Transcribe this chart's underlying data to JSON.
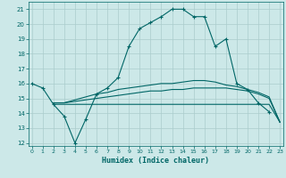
{
  "xlabel": "Humidex (Indice chaleur)",
  "background_color": "#cce8e8",
  "grid_color": "#aacccc",
  "line_color": "#006666",
  "curve1": {
    "x": [
      0,
      1,
      2,
      3,
      4,
      5,
      6,
      7,
      8,
      9,
      10,
      11,
      12,
      13,
      14,
      15,
      16,
      17,
      18,
      19,
      20,
      21,
      22
    ],
    "y": [
      16.0,
      15.7,
      14.6,
      13.8,
      12.0,
      13.6,
      15.3,
      15.7,
      16.4,
      18.5,
      19.7,
      20.1,
      20.5,
      21.0,
      21.0,
      20.5,
      20.5,
      18.5,
      19.0,
      16.0,
      15.6,
      14.7,
      14.1
    ]
  },
  "curve2": {
    "x": [
      2,
      3,
      4,
      5,
      6,
      7,
      8,
      9,
      10,
      11,
      12,
      13,
      14,
      15,
      16,
      17,
      18,
      19,
      20,
      21,
      22,
      23
    ],
    "y": [
      14.6,
      14.6,
      14.6,
      14.6,
      14.6,
      14.6,
      14.6,
      14.6,
      14.6,
      14.6,
      14.6,
      14.6,
      14.6,
      14.6,
      14.6,
      14.6,
      14.6,
      14.6,
      14.6,
      14.6,
      14.6,
      13.4
    ]
  },
  "curve3": {
    "x": [
      2,
      3,
      4,
      5,
      6,
      7,
      8,
      9,
      10,
      11,
      12,
      13,
      14,
      15,
      16,
      17,
      18,
      19,
      20,
      21,
      22,
      23
    ],
    "y": [
      14.7,
      14.7,
      14.8,
      14.9,
      15.0,
      15.1,
      15.2,
      15.3,
      15.4,
      15.5,
      15.5,
      15.6,
      15.6,
      15.7,
      15.7,
      15.7,
      15.7,
      15.6,
      15.5,
      15.3,
      15.0,
      13.4
    ]
  },
  "curve4": {
    "x": [
      2,
      3,
      4,
      5,
      6,
      7,
      8,
      9,
      10,
      11,
      12,
      13,
      14,
      15,
      16,
      17,
      18,
      19,
      20,
      21,
      22,
      23
    ],
    "y": [
      14.7,
      14.7,
      14.9,
      15.1,
      15.3,
      15.4,
      15.6,
      15.7,
      15.8,
      15.9,
      16.0,
      16.0,
      16.1,
      16.2,
      16.2,
      16.1,
      15.9,
      15.8,
      15.6,
      15.4,
      15.1,
      13.4
    ]
  },
  "ylim": [
    11.8,
    21.5
  ],
  "xlim": [
    -0.3,
    23.3
  ],
  "yticks": [
    12,
    13,
    14,
    15,
    16,
    17,
    18,
    19,
    20,
    21
  ],
  "xticks": [
    0,
    1,
    2,
    3,
    4,
    5,
    6,
    7,
    8,
    9,
    10,
    11,
    12,
    13,
    14,
    15,
    16,
    17,
    18,
    19,
    20,
    21,
    22,
    23
  ]
}
